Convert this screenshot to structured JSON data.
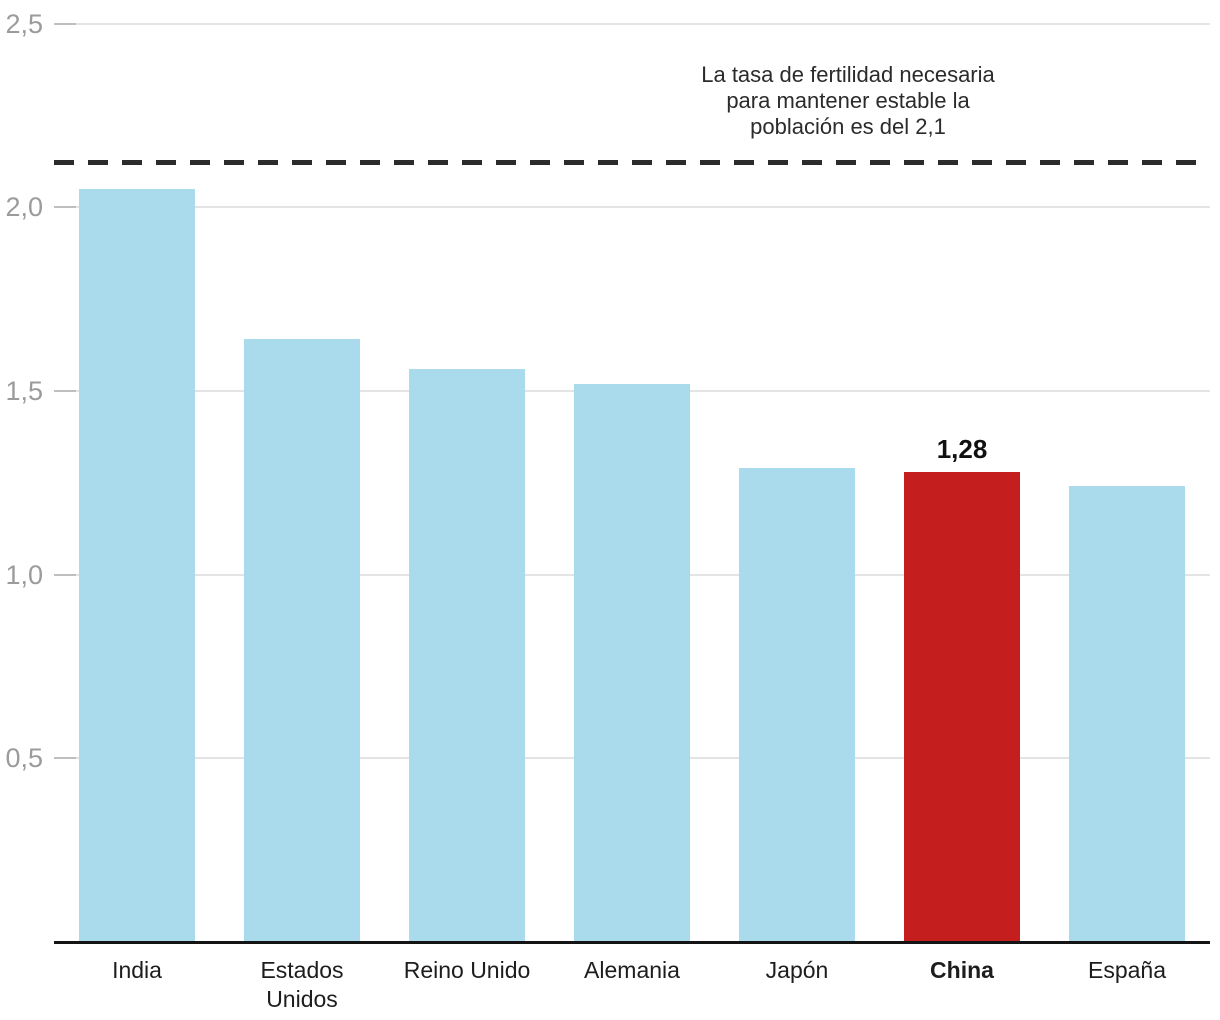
{
  "chart_data": {
    "type": "bar",
    "title": "",
    "categories": [
      "India",
      "Estados Unidos",
      "Reino Unido",
      "Alemania",
      "Japón",
      "China",
      "España"
    ],
    "values": [
      2.05,
      1.64,
      1.56,
      1.52,
      1.29,
      1.28,
      1.24
    ],
    "highlight": {
      "category": "China",
      "value_label": "1,28"
    },
    "y_axis": {
      "min": 0,
      "max": 2.5,
      "ticks": [
        {
          "value": 0.5,
          "label": "0,5"
        },
        {
          "value": 1.0,
          "label": "1,0"
        },
        {
          "value": 1.5,
          "label": "1,5"
        },
        {
          "value": 2.0,
          "label": "2,0"
        },
        {
          "value": 2.5,
          "label": "2,5"
        }
      ]
    },
    "reference_line": {
      "value": 2.1,
      "style": "dashed",
      "annotation": "La tasa de fertilidad necesaria\npara mantener estable la\npoblación es del 2,1"
    },
    "colors": {
      "bar": "#aadbec",
      "highlight": "#c41f1e",
      "grid": "#e4e4e4",
      "tick_stub": "#bfbfbf",
      "axis": "#141414",
      "tick_label": "#9b9b9b",
      "category_label": "#1d1d1d",
      "reference": "#2b2b2b"
    },
    "grid": true,
    "legend": "none"
  }
}
